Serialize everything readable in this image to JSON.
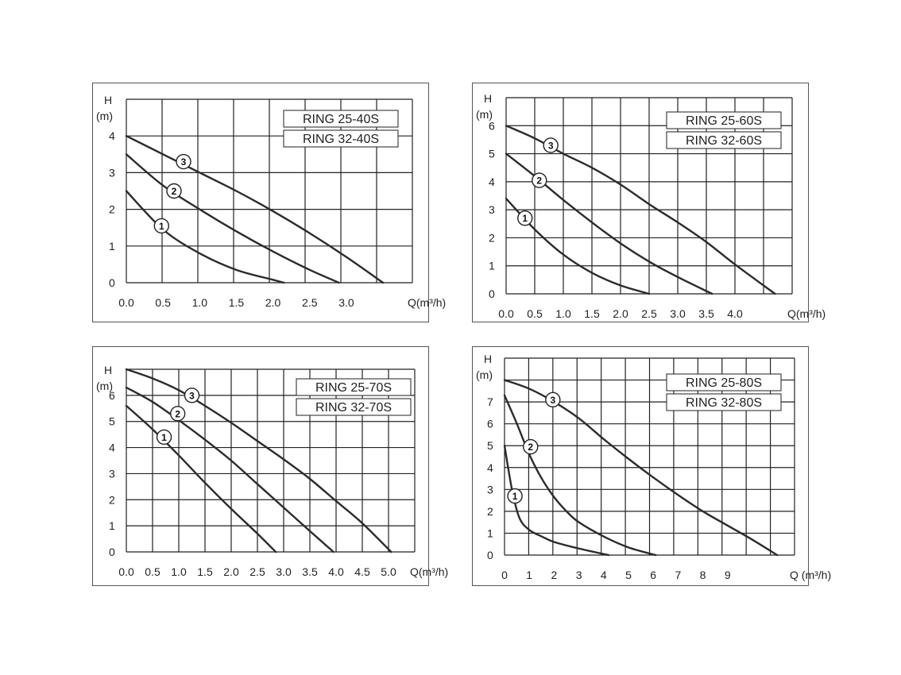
{
  "chart_data": [
    {
      "type": "line",
      "models": [
        "RING 25-40S",
        "RING 32-40S"
      ],
      "ylabel_top": "H",
      "ylabel_unit": "(m)",
      "xlabel": "Q(m³/h)",
      "x_ticks": [
        "0.0",
        "0.5",
        "1.0",
        "1.5",
        "2.0",
        "2.5",
        "3.0"
      ],
      "y_ticks": [
        "0",
        "1",
        "2",
        "3",
        "4"
      ],
      "xlim": [
        0,
        3.9
      ],
      "ylim": [
        0,
        5
      ],
      "grid": true,
      "series": [
        {
          "name": "1",
          "x": [
            0,
            0.5,
            1.0,
            1.5,
            2.0,
            2.15
          ],
          "y": [
            2.5,
            1.45,
            0.8,
            0.35,
            0.08,
            0
          ]
        },
        {
          "name": "2",
          "x": [
            0,
            0.5,
            1.0,
            1.5,
            2.0,
            2.5,
            2.9
          ],
          "y": [
            3.5,
            2.65,
            2.0,
            1.4,
            0.85,
            0.35,
            0
          ]
        },
        {
          "name": "3",
          "x": [
            0,
            0.5,
            1.0,
            1.5,
            2.0,
            2.5,
            3.0,
            3.5
          ],
          "y": [
            4.0,
            3.5,
            3.0,
            2.5,
            1.95,
            1.35,
            0.7,
            0
          ]
        }
      ],
      "markers": [
        {
          "label": "1",
          "x": 0.48,
          "y": 1.55
        },
        {
          "label": "2",
          "x": 0.65,
          "y": 2.5
        },
        {
          "label": "3",
          "x": 0.78,
          "y": 3.3
        }
      ]
    },
    {
      "type": "line",
      "models": [
        "RING 25-60S",
        "RING 32-60S"
      ],
      "ylabel_top": "H",
      "ylabel_unit": "(m)",
      "xlabel": "Q(m³/h)",
      "x_ticks": [
        "0.0",
        "0.5",
        "1.0",
        "1.5",
        "2.0",
        "2.5",
        "3.0",
        "3.5",
        "4.0"
      ],
      "y_ticks": [
        "0",
        "1",
        "2",
        "3",
        "4",
        "5",
        "6"
      ],
      "xlim": [
        0,
        5.0
      ],
      "ylim": [
        0,
        7
      ],
      "grid": true,
      "series": [
        {
          "name": "1",
          "x": [
            0,
            0.5,
            1.0,
            1.5,
            2.0,
            2.5
          ],
          "y": [
            3.4,
            2.3,
            1.4,
            0.75,
            0.3,
            0
          ]
        },
        {
          "name": "2",
          "x": [
            0,
            0.5,
            1.0,
            1.5,
            2.0,
            2.5,
            3.0,
            3.6
          ],
          "y": [
            5.0,
            4.2,
            3.35,
            2.55,
            1.8,
            1.15,
            0.6,
            0
          ]
        },
        {
          "name": "3",
          "x": [
            0,
            0.5,
            1.0,
            1.5,
            2.0,
            2.5,
            3.0,
            3.5,
            4.0,
            4.7
          ],
          "y": [
            6.0,
            5.55,
            5.0,
            4.5,
            3.9,
            3.2,
            2.55,
            1.85,
            1.05,
            0
          ]
        }
      ],
      "markers": [
        {
          "label": "1",
          "x": 0.33,
          "y": 2.7
        },
        {
          "label": "2",
          "x": 0.58,
          "y": 4.05
        },
        {
          "label": "3",
          "x": 0.78,
          "y": 5.3
        }
      ]
    },
    {
      "type": "line",
      "models": [
        "RING 25-70S",
        "RING 32-70S"
      ],
      "ylabel_top": "H",
      "ylabel_unit": "(m)",
      "xlabel": "Q(m³/h)",
      "x_ticks": [
        "0.0",
        "0.5",
        "1.0",
        "1.5",
        "2.0",
        "2.5",
        "3.0",
        "3.5",
        "4.0",
        "4.5",
        "5.0"
      ],
      "y_ticks": [
        "0",
        "1",
        "2",
        "3",
        "4",
        "5",
        "6"
      ],
      "xlim": [
        0,
        5.5
      ],
      "ylim": [
        0,
        7
      ],
      "grid": true,
      "series": [
        {
          "name": "1",
          "x": [
            0,
            0.5,
            1.0,
            1.5,
            2.0,
            2.5,
            2.85
          ],
          "y": [
            5.6,
            4.7,
            3.7,
            2.65,
            1.65,
            0.7,
            0
          ]
        },
        {
          "name": "2",
          "x": [
            0,
            0.5,
            1.0,
            1.5,
            2.0,
            2.5,
            3.0,
            3.5,
            3.95
          ],
          "y": [
            6.3,
            5.75,
            5.05,
            4.3,
            3.5,
            2.6,
            1.7,
            0.8,
            0
          ]
        },
        {
          "name": "3",
          "x": [
            0,
            0.5,
            1.0,
            1.5,
            2.0,
            2.5,
            3.0,
            3.5,
            4.0,
            4.5,
            5.05
          ],
          "y": [
            7.0,
            6.65,
            6.2,
            5.6,
            4.95,
            4.25,
            3.55,
            2.8,
            1.95,
            1.1,
            0
          ]
        }
      ],
      "markers": [
        {
          "label": "1",
          "x": 0.72,
          "y": 4.4
        },
        {
          "label": "2",
          "x": 0.98,
          "y": 5.3
        },
        {
          "label": "3",
          "x": 1.25,
          "y": 6.0
        }
      ]
    },
    {
      "type": "line",
      "models": [
        "RING 25-80S",
        "RING 32-80S"
      ],
      "ylabel_top": "H",
      "ylabel_unit": "(m)",
      "xlabel": "Q (m³/h)",
      "x_ticks": [
        "0",
        "1",
        "2",
        "3",
        "4",
        "5",
        "6",
        "7",
        "8",
        "9"
      ],
      "y_ticks": [
        "0",
        "1",
        "2",
        "3",
        "4",
        "5",
        "6",
        "7"
      ],
      "xlim": [
        0,
        11.7
      ],
      "ylim": [
        0,
        9
      ],
      "grid": true,
      "series": [
        {
          "name": "1",
          "x": [
            0,
            0.3,
            0.6,
            1.0,
            1.5,
            2.0,
            3.0,
            4.2
          ],
          "y": [
            5.0,
            3.0,
            1.7,
            1.15,
            0.85,
            0.6,
            0.3,
            0
          ]
        },
        {
          "name": "2",
          "x": [
            0,
            0.5,
            1.0,
            1.5,
            2.0,
            2.5,
            3.0,
            4.0,
            5.0,
            6.1
          ],
          "y": [
            7.3,
            6.0,
            4.6,
            3.5,
            2.65,
            2.0,
            1.5,
            0.85,
            0.35,
            0
          ]
        },
        {
          "name": "3",
          "x": [
            0,
            1.0,
            2.0,
            3.0,
            4.0,
            5.0,
            6.0,
            7.0,
            8.0,
            9.0,
            10.0,
            11.0
          ],
          "y": [
            8.0,
            7.6,
            7.0,
            6.25,
            5.3,
            4.4,
            3.55,
            2.75,
            2.0,
            1.35,
            0.7,
            0
          ]
        }
      ],
      "markers": [
        {
          "label": "1",
          "x": 0.42,
          "y": 2.7
        },
        {
          "label": "2",
          "x": 1.05,
          "y": 4.95
        },
        {
          "label": "3",
          "x": 1.95,
          "y": 7.1
        }
      ]
    }
  ]
}
